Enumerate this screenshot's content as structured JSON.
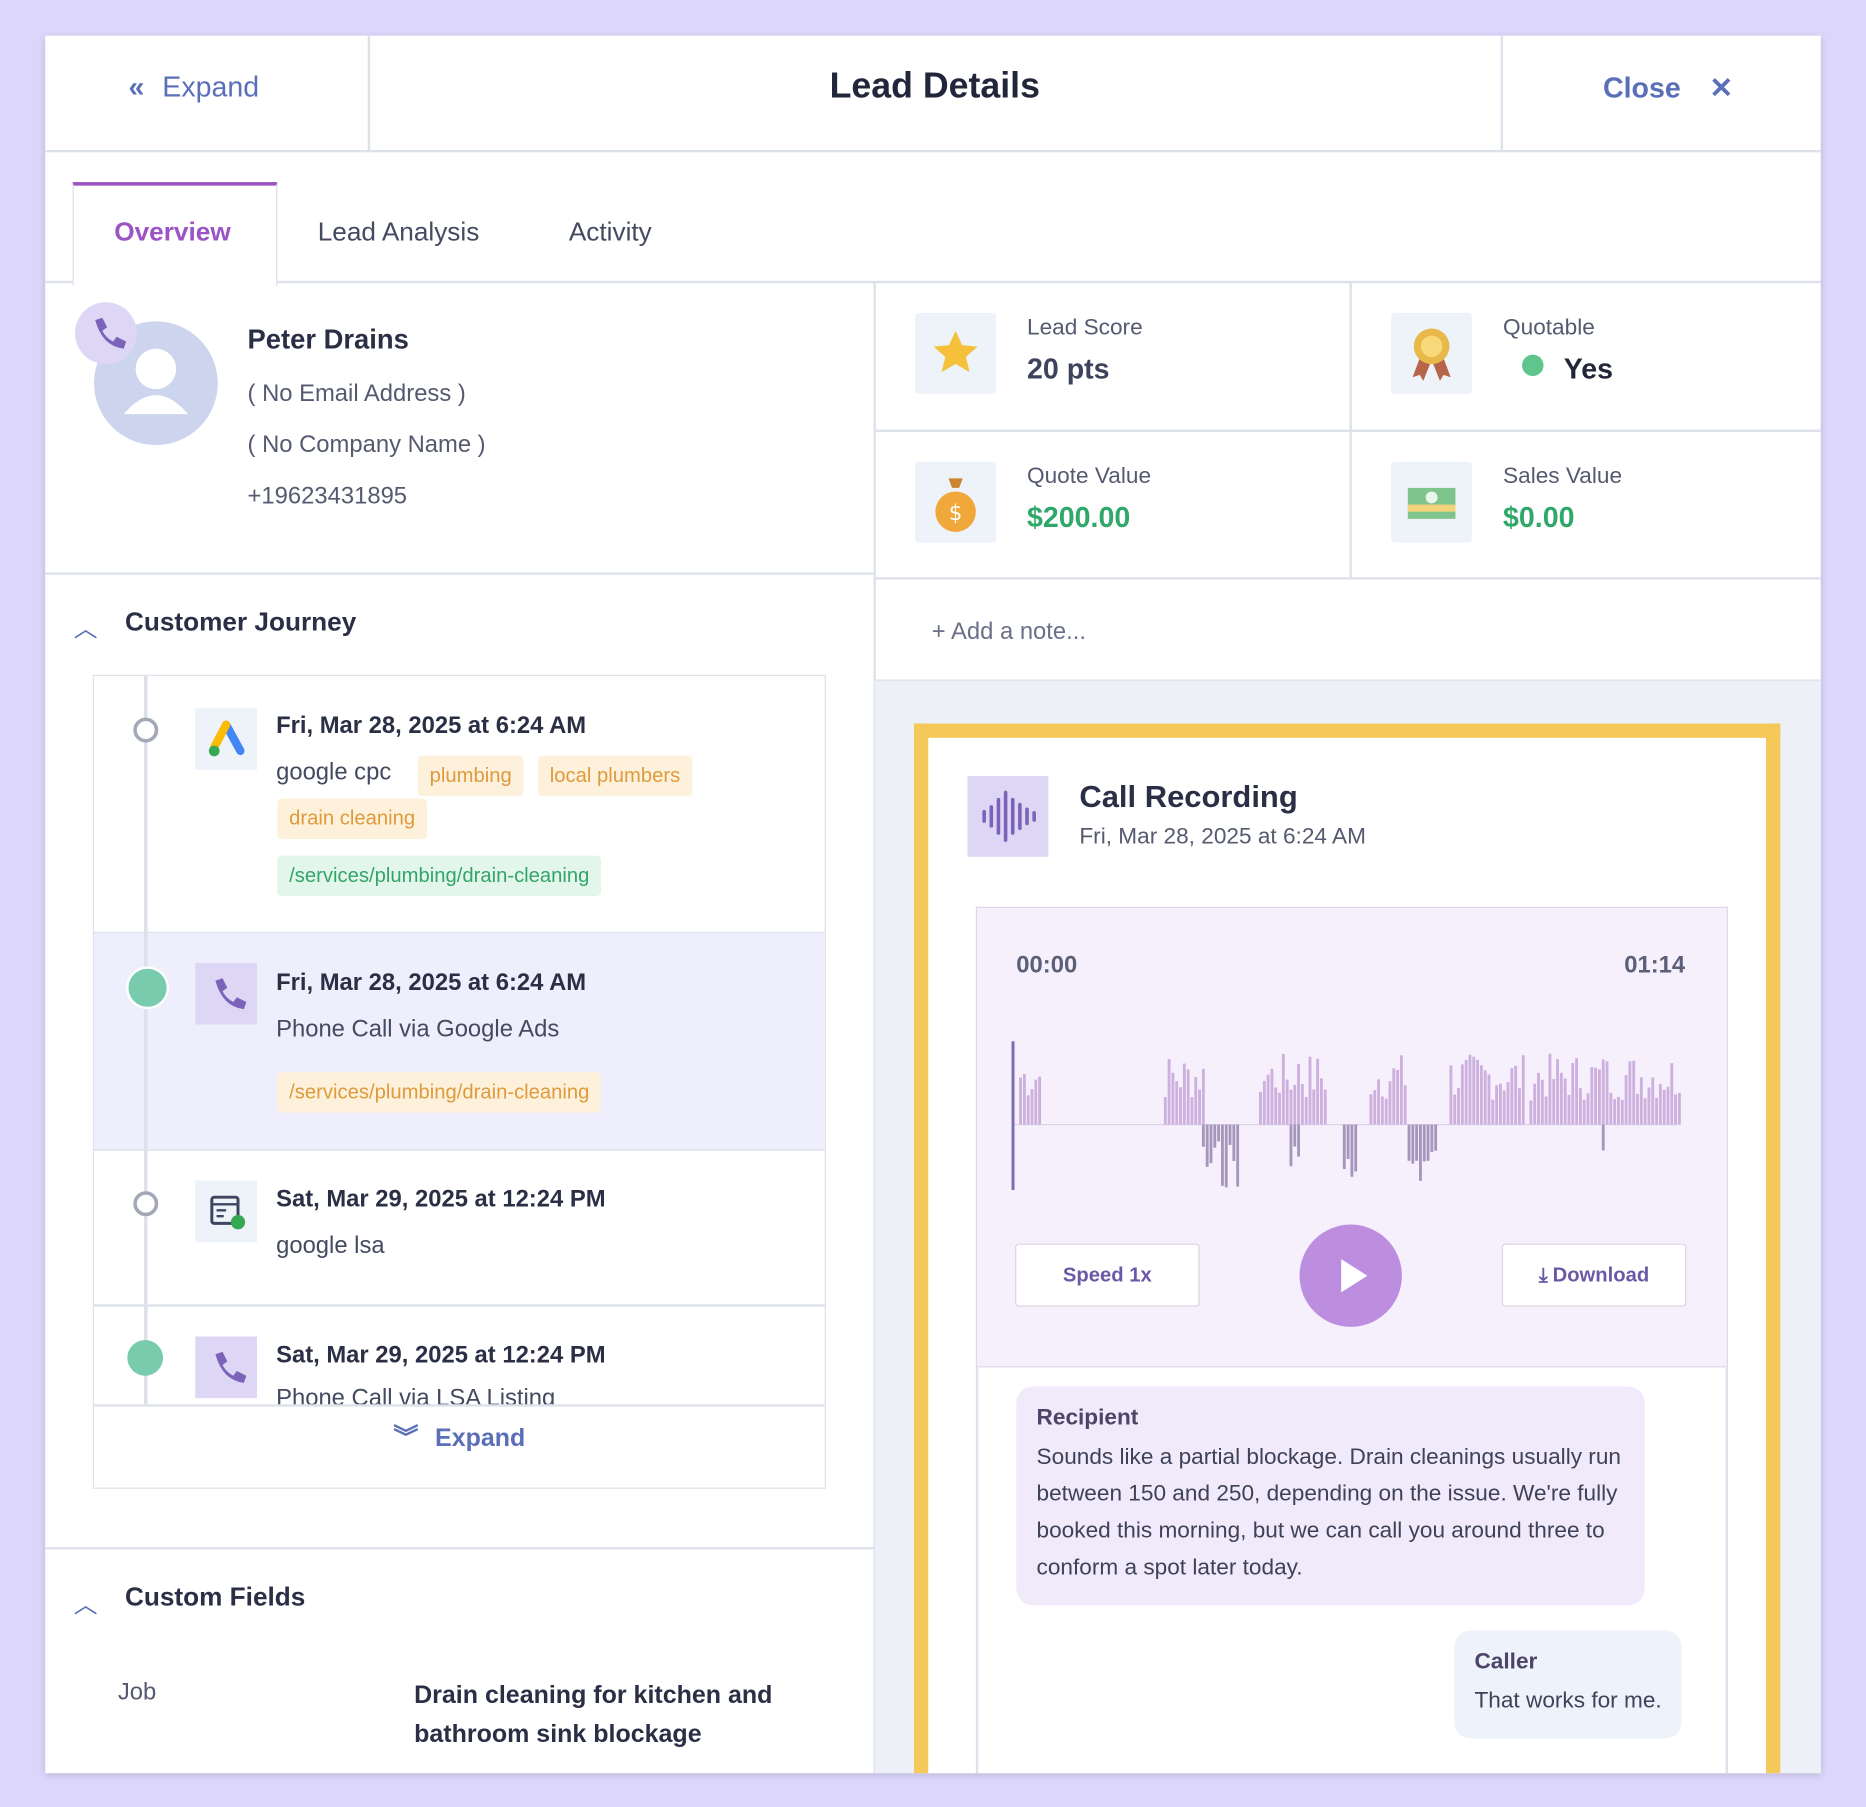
{
  "header": {
    "expand": "Expand",
    "title": "Lead Details",
    "close": "Close"
  },
  "tabs": [
    "Overview",
    "Lead Analysis",
    "Activity"
  ],
  "contact": {
    "name": "Peter Drains",
    "email": "( No Email Address )",
    "company": "( No Company Name )",
    "phone": "+19623431895"
  },
  "stats": [
    {
      "label": "Lead Score",
      "value": "20 pts"
    },
    {
      "label": "Quotable",
      "value": "Yes"
    },
    {
      "label": "Quote Value",
      "value": "$200.00"
    },
    {
      "label": "Sales Value",
      "value": "$0.00"
    }
  ],
  "note": "+ Add a note...",
  "journey": {
    "title": "Customer Journey",
    "events": [
      {
        "date": "Fri, Mar 28, 2025 at 6:24 AM",
        "text": "google cpc",
        "tags": [
          "plumbing",
          "local plumbers",
          "drain cleaning"
        ],
        "path": "/services/plumbing/drain-cleaning"
      },
      {
        "date": "Fri, Mar 28, 2025 at 6:24 AM",
        "text": "Phone Call via Google Ads",
        "path": "/services/plumbing/drain-cleaning"
      },
      {
        "date": "Sat, Mar 29, 2025 at 12:24 PM",
        "text": "google lsa"
      },
      {
        "date": "Sat, Mar 29, 2025 at 12:24 PM",
        "text": "Phone Call via LSA Listing"
      }
    ],
    "expand": "Expand"
  },
  "custom_fields": {
    "title": "Custom Fields",
    "rows": [
      {
        "label": "Job",
        "value": "Drain cleaning for kitchen and bathroom sink blockage"
      }
    ]
  },
  "recording": {
    "title": "Call Recording",
    "date": "Fri, Mar 28, 2025 at 6:24 AM",
    "start": "00:00",
    "end": "01:14",
    "speed": "Speed 1x",
    "download": "Download",
    "transcript": [
      {
        "speaker": "Recipient",
        "text": "Sounds like a partial blockage. Drain cleanings usually run between 150 and 250, depending on the issue. We're fully booked this morning, but we can call you around three to conform a spot later today."
      },
      {
        "speaker": "Caller",
        "text": "That works for me."
      }
    ]
  }
}
